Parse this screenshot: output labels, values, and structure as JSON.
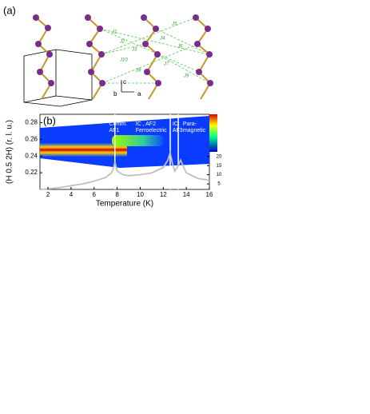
{
  "panel_a": {
    "label": "(a)",
    "exchange_labels": [
      "J1",
      "J2",
      "J3",
      "J4",
      "J5",
      "J6",
      "J7",
      "J8",
      "J9",
      "J10"
    ],
    "axes": [
      "c",
      "b",
      "a"
    ]
  },
  "chart_data": {
    "type": "line",
    "label": "(b)",
    "xlabel": "Temperature (K)",
    "ylabel": "(H 0.5 2H) (r. l. u.)",
    "xlim": [
      1.3,
      16
    ],
    "xticks": [
      2,
      4,
      6,
      8,
      10,
      12,
      14,
      16
    ],
    "ylim": [
      0.2,
      0.29
    ],
    "yticks": [
      0.22,
      0.24,
      0.26,
      0.28
    ],
    "y2lim": [
      2,
      43
    ],
    "y2ticks": [
      5,
      10,
      15,
      20
    ],
    "phase_boundaries": [
      7.8,
      12.6,
      13.3
    ],
    "regions": [
      {
        "lines": [
          "Comm.",
          "AF1"
        ],
        "x": 7.3
      },
      {
        "lines": [
          "IC , AF2",
          "Ferroelectric"
        ],
        "x": 9.6
      },
      {
        "lines": [
          "IC",
          "AF3"
        ],
        "x": 12.8
      },
      {
        "lines": [
          "Para-",
          "magnetic"
        ],
        "x": 13.7
      }
    ],
    "series": [
      {
        "color": "#bfbfbf",
        "axis": "y2",
        "x": [
          1.3,
          2,
          3,
          4,
          5,
          6,
          7,
          7.5,
          7.7,
          7.8,
          8,
          8.5,
          9,
          10,
          11,
          12,
          12.4,
          12.6,
          12.8,
          13,
          13.3,
          13.5,
          14,
          15,
          16
        ],
        "values": [
          2,
          2.3,
          3,
          4,
          5,
          6.5,
          8.5,
          11,
          14,
          17,
          12,
          10,
          9.5,
          10,
          11,
          14,
          18,
          22,
          16,
          12,
          15,
          18,
          11,
          8,
          7
        ]
      }
    ]
  }
}
